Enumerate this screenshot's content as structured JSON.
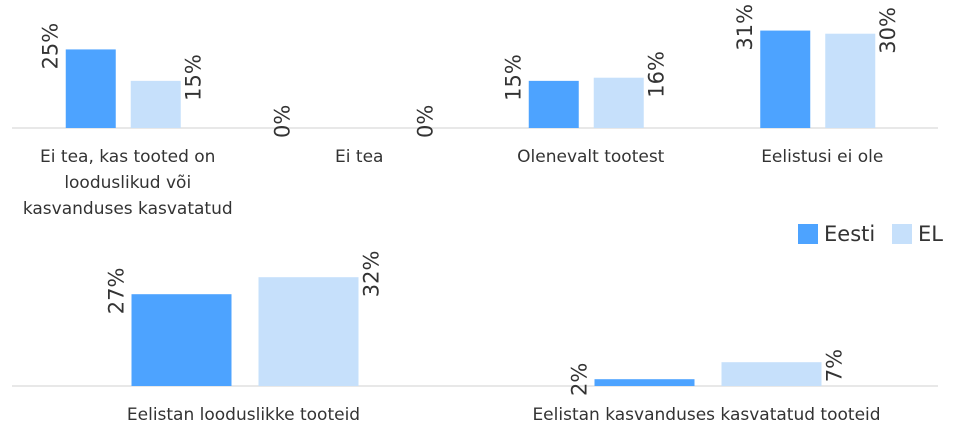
{
  "chart_data": [
    {
      "type": "bar",
      "categories": [
        "Ei tea, kas tooted on looduslikud või kasvanduses kasvatatud",
        "Ei tea",
        "Olenevalt tootest",
        "Eelistusi ei ole"
      ],
      "series": [
        {
          "name": "Eesti",
          "color": "#4da3ff",
          "values": [
            25,
            0,
            15,
            31
          ],
          "value_labels": [
            "25%",
            "0%",
            "15%",
            "31%"
          ]
        },
        {
          "name": "EL",
          "color": "#c6e0fb",
          "values": [
            15,
            0,
            16,
            30
          ],
          "value_labels": [
            "15%",
            "0%",
            "16%",
            "30%"
          ]
        }
      ],
      "ylim": [
        0,
        35
      ]
    },
    {
      "type": "bar",
      "categories": [
        "Eelistan looduslikke tooteid",
        "Eelistan kasvanduses kasvatatud tooteid"
      ],
      "series": [
        {
          "color": "#4da3ff",
          "values": [
            27,
            2
          ],
          "value_labels": [
            "27%",
            "2%"
          ]
        },
        {
          "color": "#c6e0fb",
          "values": [
            32,
            7
          ],
          "value_labels": [
            "32%",
            "7%"
          ]
        }
      ],
      "ylim": [
        0,
        35
      ]
    }
  ]
}
